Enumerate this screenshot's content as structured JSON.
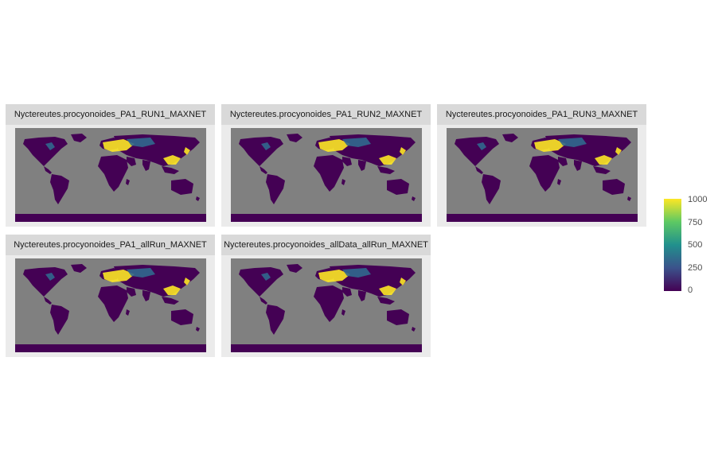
{
  "panels": [
    {
      "title": "Nyctereutes.procyonoides_PA1_RUN1_MAXNET"
    },
    {
      "title": "Nyctereutes.procyonoides_PA1_RUN2_MAXNET"
    },
    {
      "title": "Nyctereutes.procyonoides_PA1_RUN3_MAXNET"
    },
    {
      "title": "Nyctereutes.procyonoides_PA1_allRun_MAXNET"
    },
    {
      "title": "Nyctereutes.procyonoides_allData_allRun_MAXNET"
    }
  ],
  "legend": {
    "min": 0,
    "max": 1000,
    "ticks": [
      "1000",
      "750",
      "500",
      "250",
      "0"
    ],
    "palette": "viridis",
    "colors": [
      "#440154",
      "#3b528b",
      "#21908d",
      "#5dc963",
      "#fde725"
    ]
  },
  "colors": {
    "ocean": "#808080",
    "land_low": "#440154",
    "land_mid": "#31688e",
    "land_high": "#fde725",
    "panel_bg": "#ebebeb",
    "strip_bg": "#d9d9d9"
  }
}
